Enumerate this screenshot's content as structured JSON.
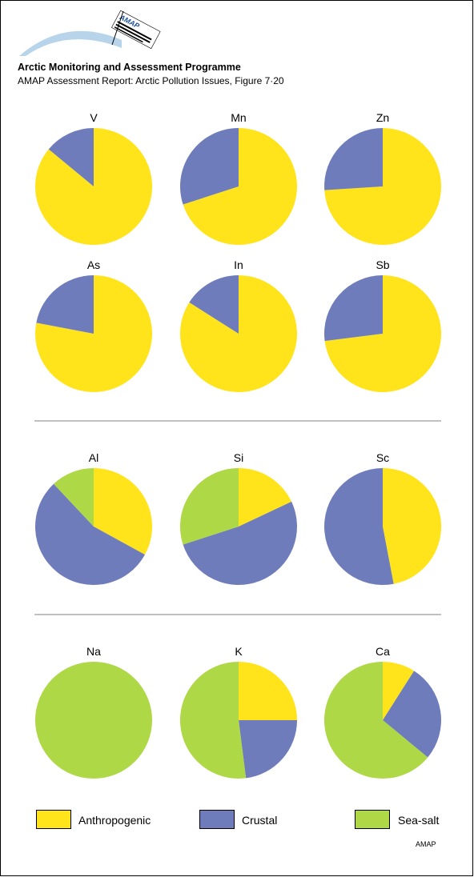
{
  "header": {
    "logo_text": "AMAP",
    "title": "Arctic Monitoring and Assessment Programme",
    "subtitle": "AMAP Assessment Report: Arctic Pollution Issues, Figure 7·20"
  },
  "colors": {
    "Anthropogenic": "#ffe41c",
    "Crustal": "#6e7cbb",
    "Sea-salt": "#aed845",
    "divider": "#808080",
    "logo_arc": "#b8d4ea"
  },
  "chart_data": [
    {
      "type": "pie",
      "title": "V",
      "series": [
        {
          "name": "Anthropogenic",
          "value": 86
        },
        {
          "name": "Crustal",
          "value": 14
        },
        {
          "name": "Sea-salt",
          "value": 0
        }
      ]
    },
    {
      "type": "pie",
      "title": "Mn",
      "series": [
        {
          "name": "Anthropogenic",
          "value": 70
        },
        {
          "name": "Crustal",
          "value": 30
        },
        {
          "name": "Sea-salt",
          "value": 0
        }
      ]
    },
    {
      "type": "pie",
      "title": "Zn",
      "series": [
        {
          "name": "Anthropogenic",
          "value": 74
        },
        {
          "name": "Crustal",
          "value": 26
        },
        {
          "name": "Sea-salt",
          "value": 0
        }
      ]
    },
    {
      "type": "pie",
      "title": "As",
      "series": [
        {
          "name": "Anthropogenic",
          "value": 78
        },
        {
          "name": "Crustal",
          "value": 22
        },
        {
          "name": "Sea-salt",
          "value": 0
        }
      ]
    },
    {
      "type": "pie",
      "title": "In",
      "series": [
        {
          "name": "Anthropogenic",
          "value": 84
        },
        {
          "name": "Crustal",
          "value": 16
        },
        {
          "name": "Sea-salt",
          "value": 0
        }
      ]
    },
    {
      "type": "pie",
      "title": "Sb",
      "series": [
        {
          "name": "Anthropogenic",
          "value": 73
        },
        {
          "name": "Crustal",
          "value": 27
        },
        {
          "name": "Sea-salt",
          "value": 0
        }
      ]
    },
    {
      "type": "pie",
      "title": "Al",
      "series": [
        {
          "name": "Anthropogenic",
          "value": 33
        },
        {
          "name": "Crustal",
          "value": 55
        },
        {
          "name": "Sea-salt",
          "value": 12
        }
      ]
    },
    {
      "type": "pie",
      "title": "Si",
      "series": [
        {
          "name": "Anthropogenic",
          "value": 18
        },
        {
          "name": "Crustal",
          "value": 52
        },
        {
          "name": "Sea-salt",
          "value": 30
        }
      ]
    },
    {
      "type": "pie",
      "title": "Sc",
      "series": [
        {
          "name": "Anthropogenic",
          "value": 47
        },
        {
          "name": "Crustal",
          "value": 53
        },
        {
          "name": "Sea-salt",
          "value": 0
        }
      ]
    },
    {
      "type": "pie",
      "title": "Na",
      "series": [
        {
          "name": "Anthropogenic",
          "value": 0
        },
        {
          "name": "Crustal",
          "value": 0
        },
        {
          "name": "Sea-salt",
          "value": 100
        }
      ]
    },
    {
      "type": "pie",
      "title": "K",
      "series": [
        {
          "name": "Anthropogenic",
          "value": 25
        },
        {
          "name": "Crustal",
          "value": 23
        },
        {
          "name": "Sea-salt",
          "value": 52
        }
      ]
    },
    {
      "type": "pie",
      "title": "Ca",
      "series": [
        {
          "name": "Anthropogenic",
          "value": 9
        },
        {
          "name": "Crustal",
          "value": 27
        },
        {
          "name": "Sea-salt",
          "value": 64
        }
      ]
    }
  ],
  "legend": [
    {
      "name": "Anthropogenic",
      "label": "Anthropogenic"
    },
    {
      "name": "Crustal",
      "label": "Crustal"
    },
    {
      "name": "Sea-salt",
      "label": "Sea-salt"
    }
  ],
  "footer": {
    "mark": "AMAP"
  }
}
